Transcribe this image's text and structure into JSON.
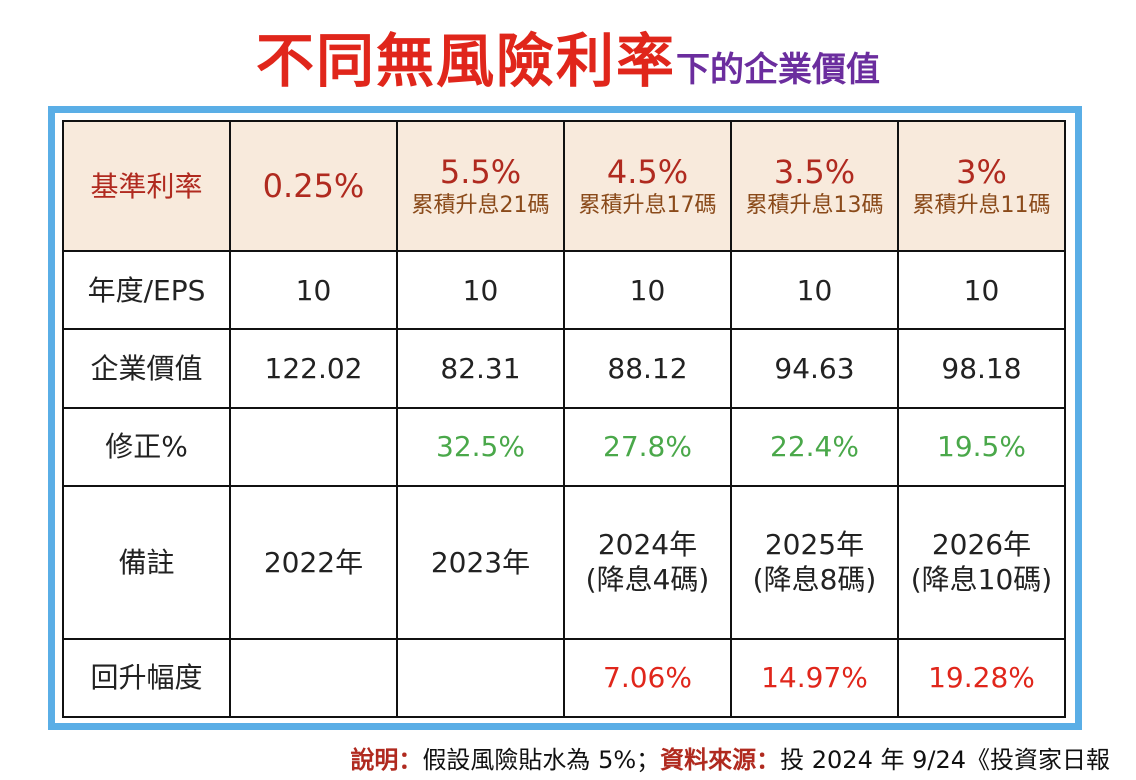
{
  "title": {
    "main": "不同無風險利率",
    "sub": "下的企業價值"
  },
  "table": {
    "header": {
      "label": "基準利率",
      "cols": [
        {
          "rate": "0.25%",
          "note": ""
        },
        {
          "rate": "5.5%",
          "note": "累積升息21碼"
        },
        {
          "rate": "4.5%",
          "note": "累積升息17碼"
        },
        {
          "rate": "3.5%",
          "note": "累積升息13碼"
        },
        {
          "rate": "3%",
          "note": "累積升息11碼"
        }
      ]
    },
    "rows": [
      {
        "label": "年度/EPS",
        "cells": [
          "10",
          "10",
          "10",
          "10",
          "10"
        ]
      },
      {
        "label": "企業價值",
        "cells": [
          "122.02",
          "82.31",
          "88.12",
          "94.63",
          "98.18"
        ]
      },
      {
        "label": "修正%",
        "cells": [
          "",
          "32.5%",
          "27.8%",
          "22.4%",
          "19.5%"
        ]
      },
      {
        "label": "備註",
        "cells": [
          "2022年",
          "2023年",
          "2024年",
          "2025年",
          "2026年"
        ],
        "sub": [
          "",
          "",
          "(降息4碼)",
          "(降息8碼)",
          "(降息10碼)"
        ]
      },
      {
        "label": "回升幅度",
        "cells": [
          "",
          "",
          "7.06%",
          "14.97%",
          "19.28%"
        ]
      }
    ]
  },
  "footer": {
    "note_label": "說明：",
    "note_text": "假設風險貼水為 5%；",
    "source_label": "資料來源：",
    "source_text": "投 2024 年 9/24《投資家日報"
  },
  "colors": {
    "title_red": "#e0261b",
    "title_purple": "#6b2d9e",
    "frame_blue": "#5aaee6",
    "header_bg": "#f8eadc",
    "green": "#4aa84a"
  }
}
